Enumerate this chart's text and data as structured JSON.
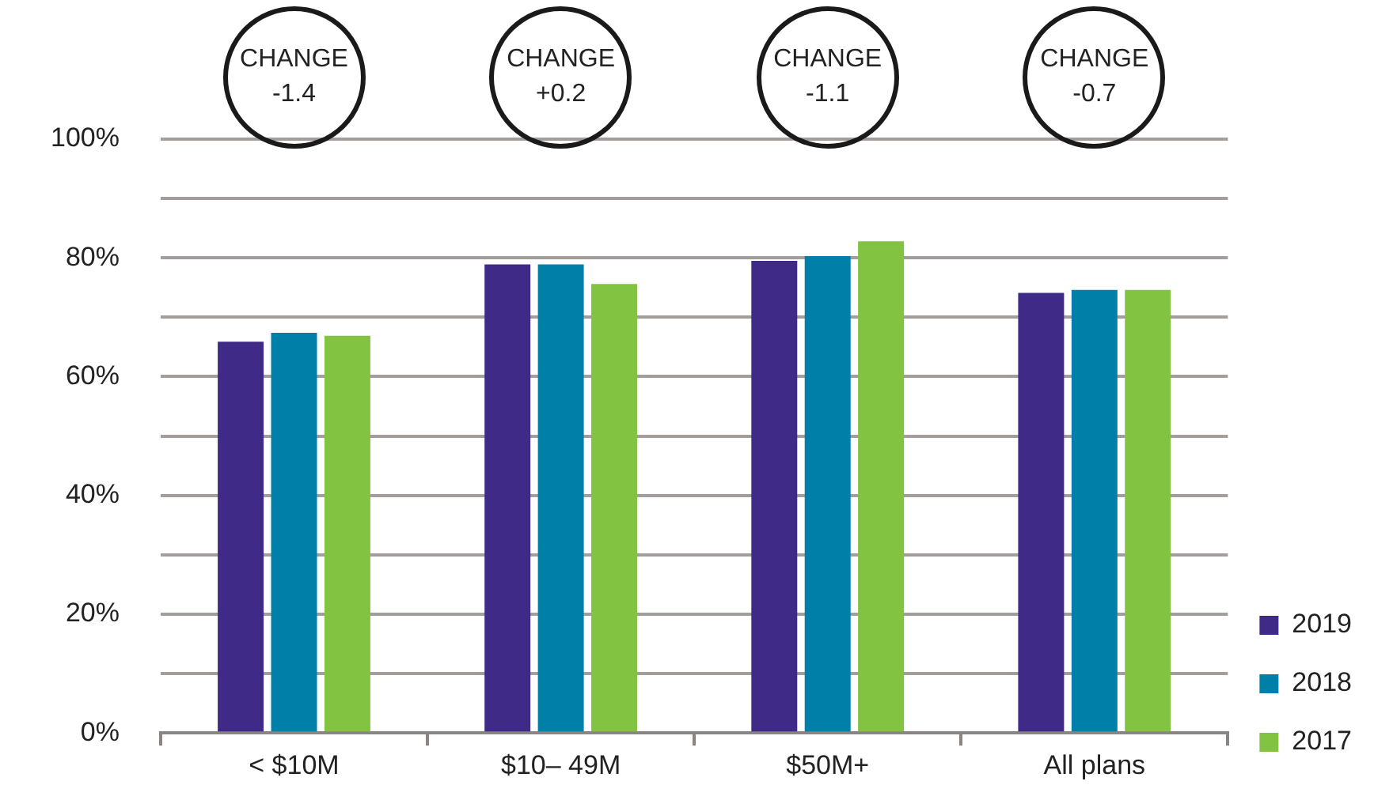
{
  "chart_data": {
    "type": "bar",
    "categories": [
      "< $10M",
      "$10– 49M",
      "$50M+",
      "All plans"
    ],
    "series": [
      {
        "name": "2019",
        "color": "#3f2a87",
        "values": [
          65.9,
          78.9,
          79.5,
          74.1
        ]
      },
      {
        "name": "2018",
        "color": "#0080a8",
        "values": [
          67.4,
          78.9,
          80.3,
          74.6
        ]
      },
      {
        "name": "2017",
        "color": "#82c341",
        "values": [
          66.9,
          75.6,
          82.8,
          74.6
        ]
      }
    ],
    "ylim": [
      0,
      100
    ],
    "yticks": [
      {
        "value": 0,
        "label": "0%"
      },
      {
        "value": 10,
        "label": null
      },
      {
        "value": 20,
        "label": "20%"
      },
      {
        "value": 30,
        "label": null
      },
      {
        "value": 40,
        "label": "40%"
      },
      {
        "value": 50,
        "label": null
      },
      {
        "value": 60,
        "label": "60%"
      },
      {
        "value": 70,
        "label": null
      },
      {
        "value": 80,
        "label": "80%"
      },
      {
        "value": 90,
        "label": null
      },
      {
        "value": 100,
        "label": "100%"
      }
    ],
    "grid": "y",
    "legend": "bottom right",
    "annotations": [
      "CHANGE -1.4",
      "CHANGE +0.2",
      "CHANGE -1.1",
      "CHANGE -0.7"
    ]
  }
}
